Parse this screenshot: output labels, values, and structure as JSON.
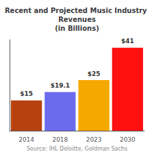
{
  "chart_data": {
    "type": "bar",
    "title": "Recent and Projected Music Industry Revenues\n(in Billions)",
    "categories": [
      "2014",
      "2018",
      "2023",
      "2030"
    ],
    "values": [
      15,
      19.1,
      25,
      41
    ],
    "value_labels": [
      "$15",
      "$19.1",
      "$25",
      "$41"
    ],
    "data_labels": true,
    "colors": [
      "#B8420F",
      "#6B6BEE",
      "#F5A800",
      "#FF1111"
    ],
    "ylim": [
      0,
      45
    ],
    "tick_labels": "x",
    "grid": false,
    "annotations": [
      "Source: IHL Deloitte, Goldman Sachs"
    ]
  }
}
